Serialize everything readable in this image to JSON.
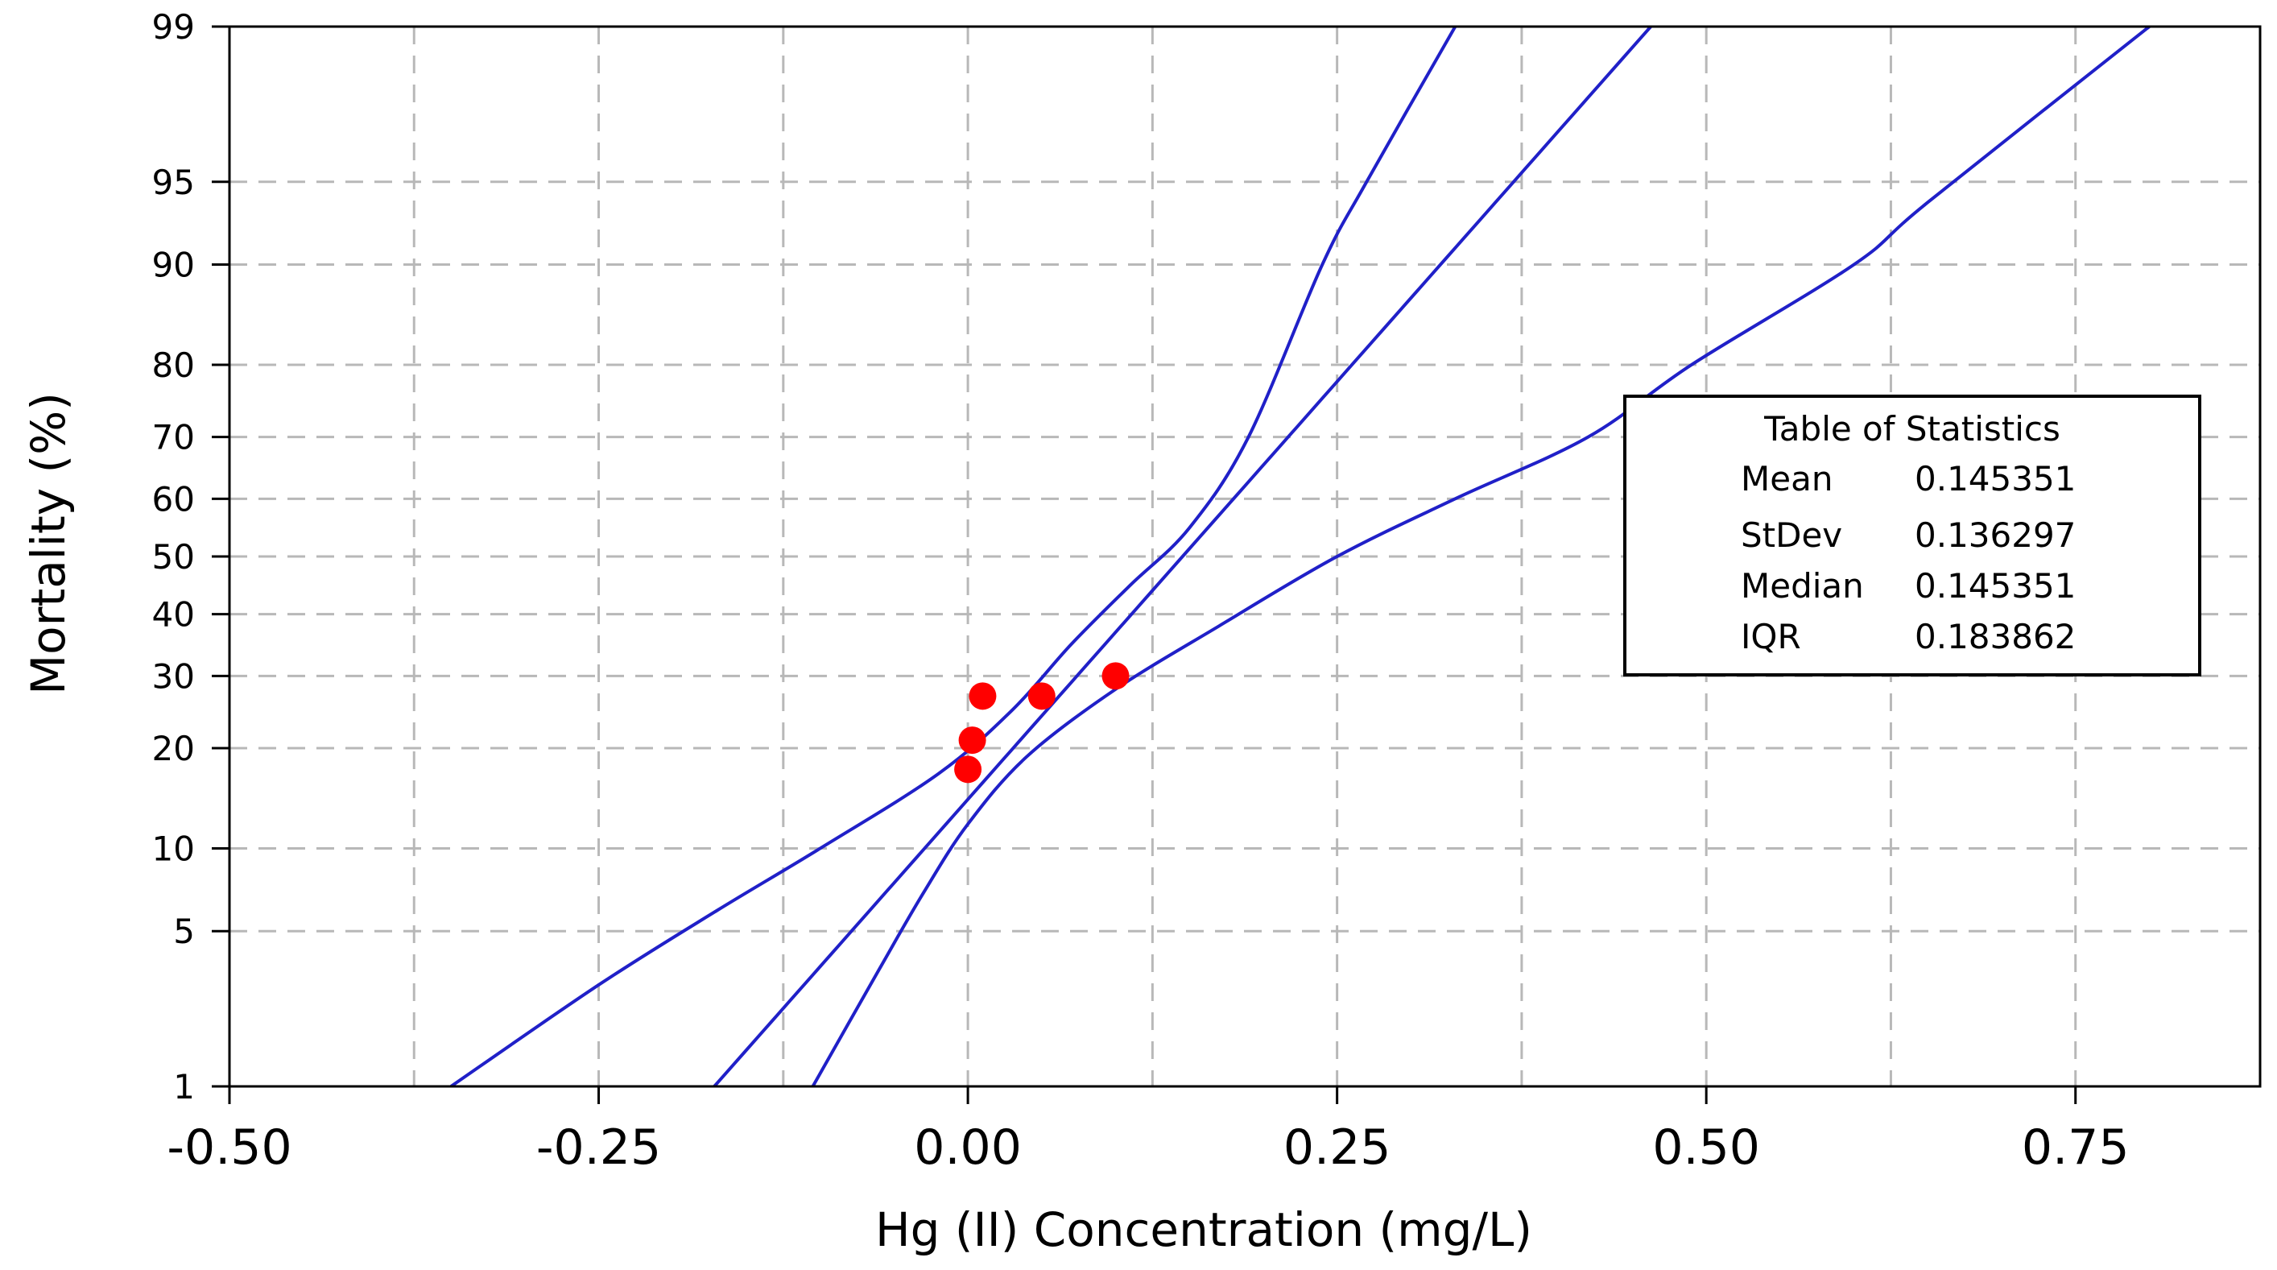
{
  "chart_data": {
    "type": "scatter",
    "subtype": "normal-probability-plot",
    "title": "",
    "xlabel": "Hg (II) Concentration (mg/L)",
    "ylabel": "Mortality (%)",
    "xlim": [
      -0.5,
      0.875
    ],
    "ylim": [
      1,
      99
    ],
    "y_scale": "probability",
    "grid": true,
    "x_ticks": [
      -0.5,
      -0.25,
      0.0,
      0.25,
      0.5,
      0.75
    ],
    "x_tick_labels": [
      "-0.50",
      "-0.25",
      "0.00",
      "0.25",
      "0.50",
      "0.75"
    ],
    "x_minor_grid": [
      -0.375,
      -0.125,
      0.125,
      0.375,
      0.625
    ],
    "y_ticks": [
      1,
      5,
      10,
      20,
      30,
      40,
      50,
      60,
      70,
      80,
      90,
      95,
      99
    ],
    "y_tick_labels": [
      "1",
      "5",
      "10",
      "20",
      "30",
      "40",
      "50",
      "60",
      "70",
      "80",
      "90",
      "95",
      "99"
    ],
    "series": [
      {
        "name": "observations",
        "kind": "points",
        "color": "#ff0000",
        "points": [
          {
            "x": 0.01,
            "y": 27
          },
          {
            "x": 0.05,
            "y": 27
          },
          {
            "x": 0.1,
            "y": 30
          },
          {
            "x": 0.003,
            "y": 21
          },
          {
            "x": 0.0,
            "y": 17.5
          }
        ]
      },
      {
        "name": "fitted normal line",
        "kind": "line",
        "color": "#2020c8",
        "mean": 0.145351,
        "stdev": 0.136297
      },
      {
        "name": "lower confidence bound",
        "kind": "line",
        "color": "#2020c8",
        "points": [
          {
            "x": -0.35,
            "y": 1
          },
          {
            "x": -0.25,
            "y": 3
          },
          {
            "x": -0.17,
            "y": 6
          },
          {
            "x": -0.1,
            "y": 10
          },
          {
            "x": -0.02,
            "y": 17
          },
          {
            "x": 0.03,
            "y": 25
          },
          {
            "x": 0.07,
            "y": 35
          },
          {
            "x": 0.11,
            "y": 45
          },
          {
            "x": 0.15,
            "y": 55
          },
          {
            "x": 0.19,
            "y": 70
          },
          {
            "x": 0.24,
            "y": 90
          },
          {
            "x": 0.27,
            "y": 95
          },
          {
            "x": 0.33,
            "y": 99
          }
        ]
      },
      {
        "name": "upper confidence bound",
        "kind": "line",
        "color": "#2020c8",
        "points": [
          {
            "x": -0.105,
            "y": 1
          },
          {
            "x": -0.06,
            "y": 3.5
          },
          {
            "x": -0.03,
            "y": 7
          },
          {
            "x": 0.0,
            "y": 12
          },
          {
            "x": 0.04,
            "y": 19
          },
          {
            "x": 0.1,
            "y": 28
          },
          {
            "x": 0.17,
            "y": 38
          },
          {
            "x": 0.25,
            "y": 50
          },
          {
            "x": 0.33,
            "y": 60
          },
          {
            "x": 0.42,
            "y": 70
          },
          {
            "x": 0.49,
            "y": 80
          },
          {
            "x": 0.6,
            "y": 90
          },
          {
            "x": 0.65,
            "y": 94
          },
          {
            "x": 0.8,
            "y": 99
          }
        ]
      }
    ]
  },
  "stats_table": {
    "title": "Table of Statistics",
    "rows": [
      {
        "label": "Mean",
        "value": "0.145351"
      },
      {
        "label": "StDev",
        "value": "0.136297"
      },
      {
        "label": "Median",
        "value": "0.145351"
      },
      {
        "label": "IQR",
        "value": "0.183862"
      }
    ]
  }
}
